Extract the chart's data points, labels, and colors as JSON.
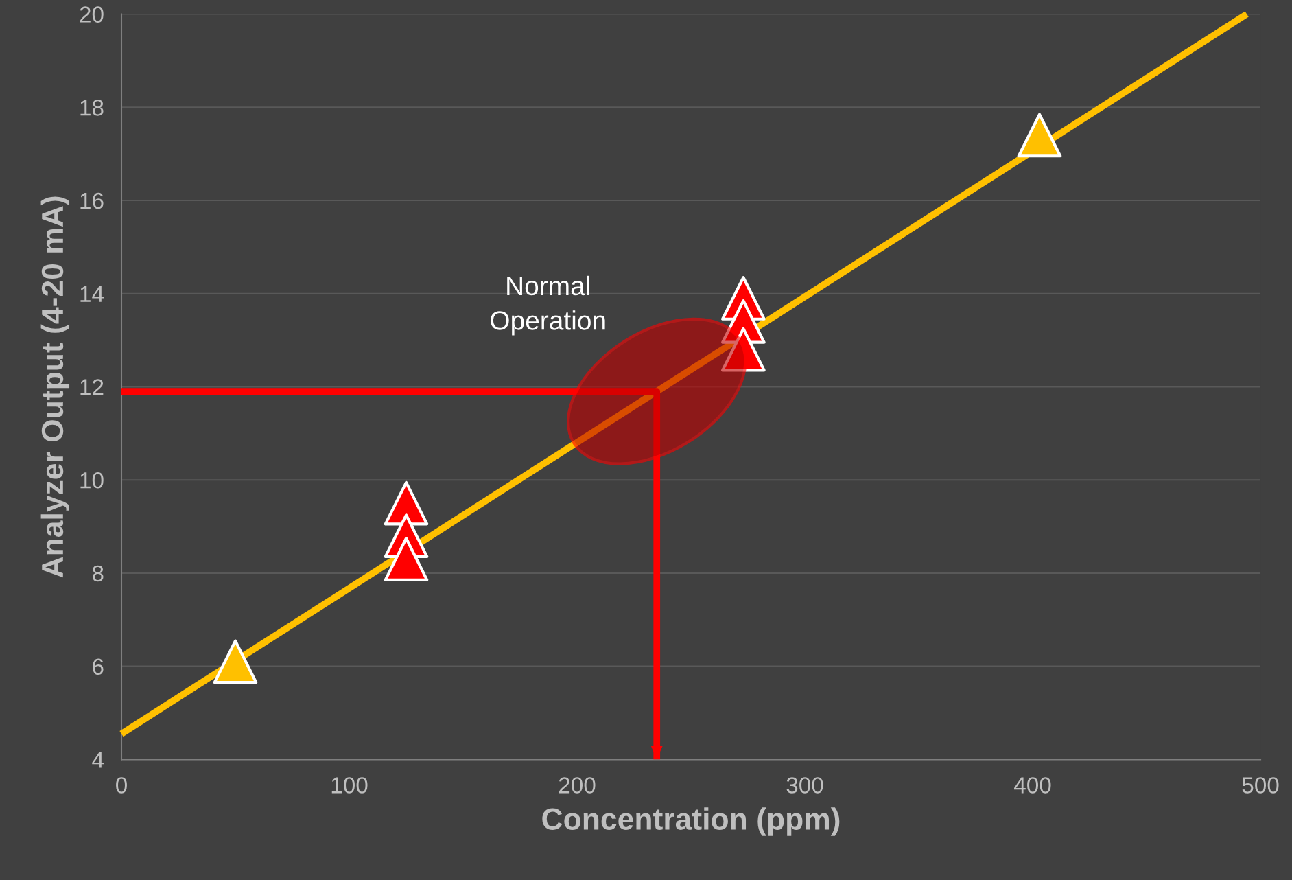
{
  "chart_data": {
    "type": "scatter",
    "xlabel": "Concentration (ppm)",
    "ylabel": "Analyzer Output (4-20 mA)",
    "xlim": [
      0,
      500
    ],
    "xticks": [
      0,
      100,
      200,
      300,
      400,
      500
    ],
    "ylim": [
      4,
      20
    ],
    "yticks": [
      4,
      6,
      8,
      10,
      12,
      14,
      16,
      18,
      20
    ],
    "grid": "y",
    "legend": false,
    "series": [
      {
        "type": "line",
        "color": "#ffc000",
        "x": [
          0,
          494
        ],
        "values": [
          4.55,
          20
        ],
        "marker": "none",
        "line_style": "solid"
      },
      {
        "color": "#ffc000",
        "x": [
          50,
          403
        ],
        "values": [
          6.1,
          17.4
        ],
        "marker": "triangle"
      },
      {
        "color": "#ff0000",
        "x": [
          125,
          125,
          125,
          273,
          273,
          273
        ],
        "values": [
          9.5,
          8.8,
          8.3,
          13.9,
          13.4,
          12.8
        ],
        "marker": "triangle"
      },
      {
        "type": "line",
        "color": "#ff0000",
        "x": [
          0,
          235,
          235
        ],
        "values": [
          11.9,
          11.9,
          4
        ],
        "marker": "none",
        "line_style": "solid"
      }
    ],
    "annotations": [
      "Normal\nOperation"
    ]
  }
}
